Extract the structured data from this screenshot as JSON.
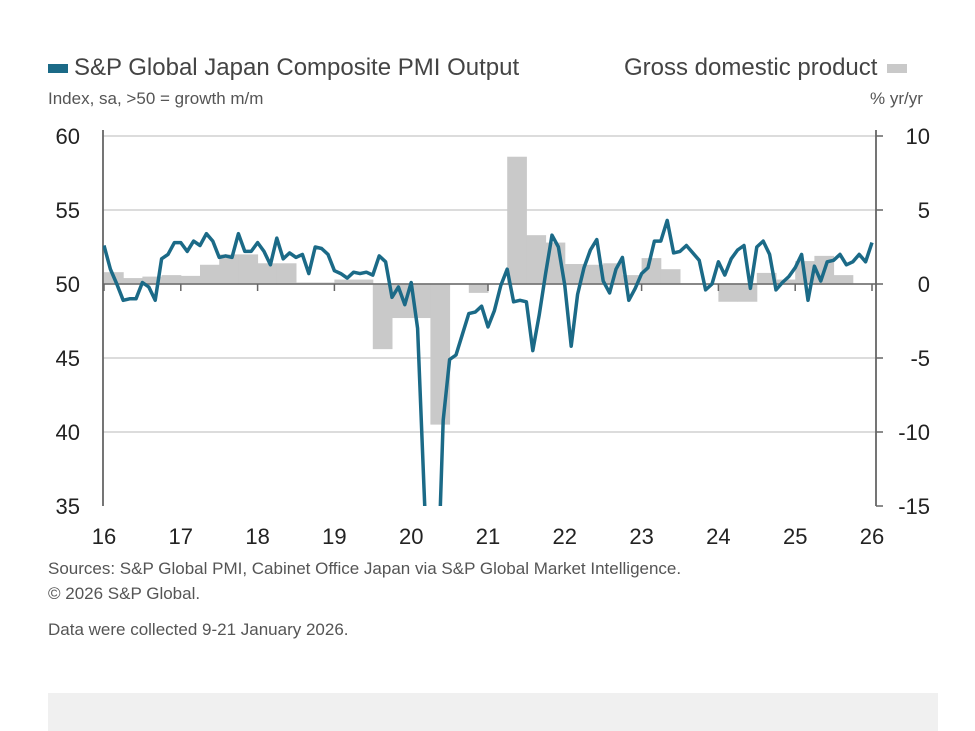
{
  "chart_data": {
    "type": "line+bar",
    "legend": {
      "left": "S&P Global Japan Composite PMI Output",
      "right": "Gross domestic product",
      "placement": "top"
    },
    "left_axis": {
      "label": "Index, sa, >50 = growth m/m",
      "range": [
        35,
        60
      ],
      "ticks": [
        "60",
        "55",
        "50",
        "45",
        "40",
        "35"
      ]
    },
    "right_axis": {
      "label": "% yr/yr",
      "range": [
        -15,
        10
      ],
      "ticks": [
        "10",
        "5",
        "0",
        "-5",
        "-10",
        "-15"
      ]
    },
    "x_ticks": [
      "16",
      "17",
      "18",
      "19",
      "20",
      "21",
      "22",
      "23",
      "24",
      "25",
      "26"
    ],
    "grid": true,
    "colors": {
      "pmi": "#1b6a87",
      "gdp": "#c9c9c9"
    },
    "pmi_series": {
      "name": "S&P Global Japan Composite PMI Output",
      "frequency": "monthly",
      "start": "2016-01",
      "values": [
        52.6,
        51.0,
        50.0,
        48.9,
        49.0,
        49.0,
        50.1,
        49.8,
        48.9,
        51.7,
        52.0,
        52.8,
        52.8,
        52.2,
        52.9,
        52.6,
        53.4,
        52.9,
        51.8,
        51.9,
        51.8,
        53.4,
        52.2,
        52.2,
        52.8,
        52.2,
        51.3,
        53.1,
        51.7,
        52.1,
        51.8,
        52.0,
        50.7,
        52.5,
        52.4,
        52.0,
        50.9,
        50.7,
        50.4,
        50.8,
        50.7,
        50.8,
        50.6,
        51.9,
        51.5,
        49.1,
        49.8,
        48.6,
        50.1,
        47.0,
        36.2,
        25.8,
        27.8,
        40.8,
        44.9,
        45.2,
        46.6,
        48.0,
        48.1,
        48.5,
        47.1,
        48.2,
        49.9,
        51.0,
        48.8,
        48.9,
        48.8,
        45.5,
        47.9,
        50.7,
        53.3,
        52.5,
        49.9,
        45.8,
        49.3,
        51.1,
        52.3,
        53.0,
        50.2,
        49.4,
        51.0,
        51.8,
        48.9,
        49.7,
        50.7,
        51.1,
        52.9,
        52.9,
        54.3,
        52.1,
        52.2,
        52.6,
        52.1,
        51.6,
        49.6,
        50.0,
        51.5,
        50.6,
        51.7,
        52.3,
        52.6,
        49.7,
        52.5,
        52.9,
        52.0,
        49.6,
        50.1,
        50.5,
        51.1,
        52.0,
        48.9,
        51.2,
        50.2,
        51.5,
        51.6,
        52.0,
        51.3,
        51.5,
        52.0,
        51.5,
        52.8
      ]
    },
    "gdp_series": {
      "name": "Gross domestic product",
      "frequency": "quarterly",
      "start": "2016-Q1",
      "values": [
        0.8,
        0.4,
        0.5,
        0.6,
        0.55,
        1.3,
        2.0,
        2.0,
        1.4,
        1.4,
        0.1,
        0.1,
        0.3,
        0.3,
        -4.4,
        -2.3,
        -2.3,
        -9.5,
        0,
        -0.6,
        0,
        8.6,
        3.3,
        2.8,
        1.35,
        1.3,
        1.4,
        0.6,
        1.75,
        1.0,
        0,
        0,
        -1.2,
        -1.2,
        0.75,
        0.3,
        1.55,
        1.9,
        0.6
      ]
    }
  },
  "footer": {
    "sources": "Sources: S&P Global PMI, Cabinet Office Japan via S&P Global Market Intelligence.",
    "copyright": "© 2026 S&P Global.",
    "collected": "Data were collected 9-21 January 2026."
  }
}
